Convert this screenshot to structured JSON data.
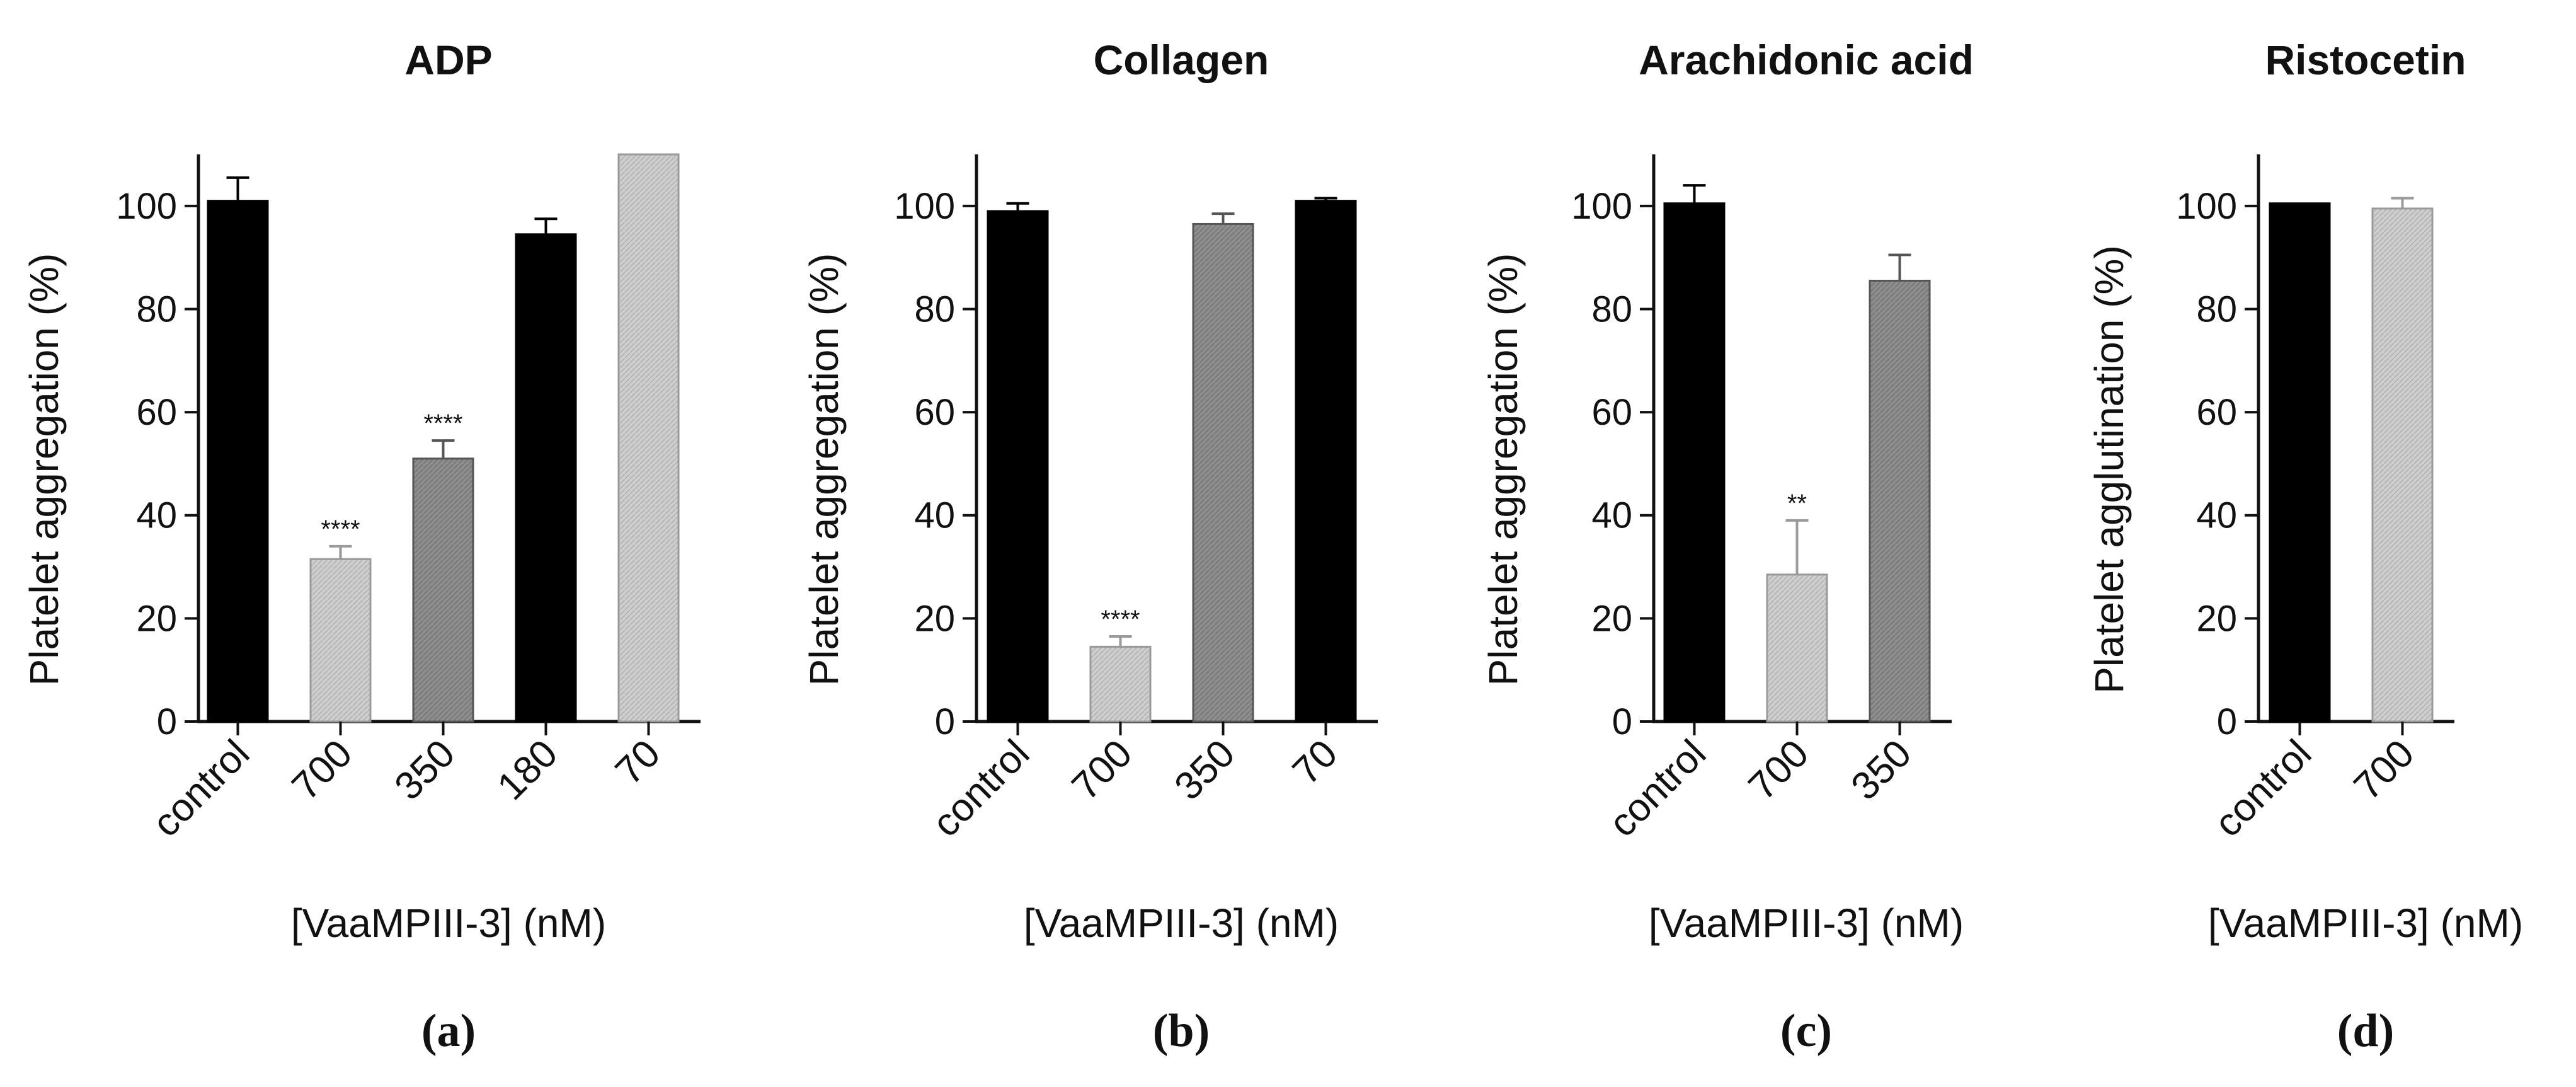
{
  "chart_data": [
    {
      "type": "bar",
      "panel_label": "(a)",
      "title": "ADP",
      "ylabel": "Platelet aggregation (%)",
      "xlabel": "[VaaMPIII-3] (nM)",
      "ylim": [
        0,
        110
      ],
      "yticks": [
        "0",
        "20",
        "40",
        "60",
        "80",
        "100"
      ],
      "categories": [
        "control",
        "700",
        "350",
        "180",
        "70"
      ],
      "values": [
        101,
        31.5,
        51,
        94.5,
        110
      ],
      "errors": [
        4.5,
        2.5,
        3.5,
        3,
        0
      ],
      "significance": [
        "",
        "****",
        "****",
        "",
        ""
      ],
      "fills": [
        "solid",
        "light",
        "dark",
        "solid",
        "light"
      ]
    },
    {
      "type": "bar",
      "panel_label": "(b)",
      "title": "Collagen",
      "ylabel": "Platelet aggregation (%)",
      "xlabel": "[VaaMPIII-3] (nM)",
      "ylim": [
        0,
        110
      ],
      "yticks": [
        "0",
        "20",
        "40",
        "60",
        "80",
        "100"
      ],
      "categories": [
        "control",
        "700",
        "350",
        "70"
      ],
      "values": [
        99,
        14.5,
        96.5,
        101
      ],
      "errors": [
        1.5,
        2,
        2,
        0.5
      ],
      "significance": [
        "",
        "****",
        "",
        ""
      ],
      "fills": [
        "solid",
        "light",
        "dark",
        "solid"
      ]
    },
    {
      "type": "bar",
      "panel_label": "(c)",
      "title": "Arachidonic acid",
      "ylabel": "Platelet aggregation (%)",
      "xlabel": "[VaaMPIII-3] (nM)",
      "ylim": [
        0,
        110
      ],
      "yticks": [
        "0",
        "20",
        "40",
        "60",
        "80",
        "100"
      ],
      "categories": [
        "control",
        "700",
        "350"
      ],
      "values": [
        100.5,
        28.5,
        85.5
      ],
      "errors": [
        3.5,
        10.5,
        5
      ],
      "significance": [
        "",
        "**",
        ""
      ],
      "fills": [
        "solid",
        "light",
        "dark"
      ]
    },
    {
      "type": "bar",
      "panel_label": "(d)",
      "title": "Ristocetin",
      "ylabel": "Platelet agglutination (%)",
      "xlabel": "[VaaMPIII-3] (nM)",
      "ylim": [
        0,
        110
      ],
      "yticks": [
        "0",
        "20",
        "40",
        "60",
        "80",
        "100"
      ],
      "categories": [
        "control",
        "700"
      ],
      "values": [
        100.5,
        99.5
      ],
      "errors": [
        0,
        2
      ],
      "significance": [
        "",
        ""
      ],
      "fills": [
        "solid",
        "light"
      ]
    }
  ],
  "colors": {
    "solid": "#000000",
    "light": "#c8c8c8",
    "dark": "#8a8a8a",
    "axis": "#111111"
  }
}
